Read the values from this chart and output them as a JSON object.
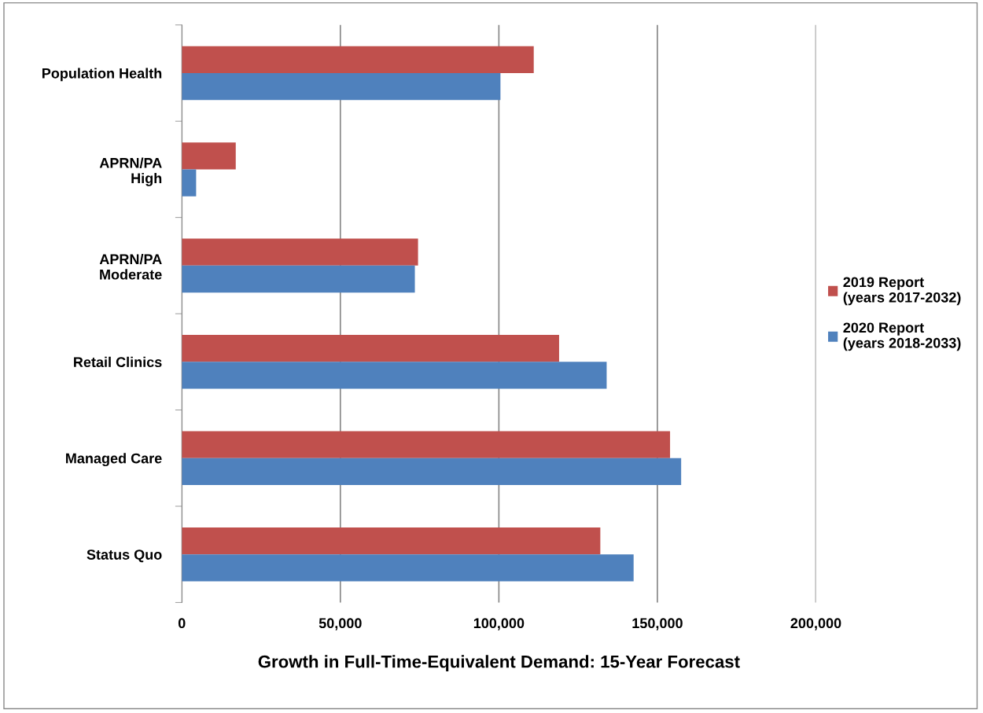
{
  "chart_data": {
    "type": "bar",
    "orientation": "horizontal",
    "xlabel": "Growth in Full-Time-Equivalent Demand: 15-Year Forecast",
    "categories": [
      "Population Health",
      "APRN/PA\nHigh",
      "APRN/PA\nModerate",
      "Retail Clinics",
      "Managed Care",
      "Status Quo"
    ],
    "series": [
      {
        "name": "2019 Report\n(years 2017-2032)",
        "color": "#c0504d",
        "values": [
          111000,
          17000,
          74500,
          119000,
          154000,
          132000
        ]
      },
      {
        "name": "2020 Report\n(years 2018-2033)",
        "color": "#4f81bd",
        "values": [
          100500,
          4500,
          73500,
          134000,
          157500,
          142500
        ]
      }
    ],
    "xlim": [
      0,
      200000
    ],
    "xticks": [
      {
        "value": 0,
        "label": "0"
      },
      {
        "value": 50000,
        "label": "50,000"
      },
      {
        "value": 100000,
        "label": "100,000"
      },
      {
        "value": 150000,
        "label": "150,000"
      },
      {
        "value": 200000,
        "label": "200,000"
      }
    ],
    "grid": "x",
    "legend": "right"
  }
}
